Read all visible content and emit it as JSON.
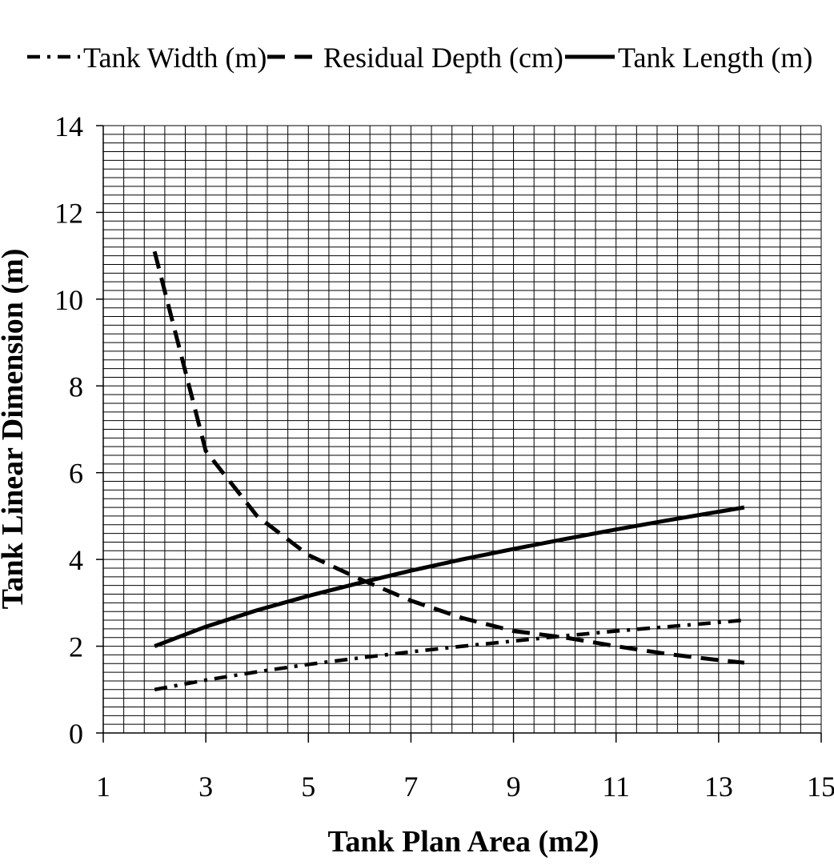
{
  "chart_data": {
    "type": "line",
    "xlabel": "Tank Plan Area (m2)",
    "ylabel": "Tank Linear Dimension (m)",
    "xlim": [
      1,
      15
    ],
    "ylim": [
      0,
      14
    ],
    "xticks": [
      "1",
      "3",
      "5",
      "7",
      "9",
      "11",
      "13",
      "15"
    ],
    "yticks": [
      "0",
      "2",
      "4",
      "6",
      "8",
      "10",
      "12",
      "14"
    ],
    "grid": true,
    "legend_position": "top",
    "series": [
      {
        "name": "Tank Width (m)",
        "style": "dash-dot",
        "x": [
          2,
          3,
          4,
          5,
          6,
          7,
          8,
          9,
          10,
          11,
          12,
          13,
          13.5
        ],
        "y": [
          1.0,
          1.22,
          1.41,
          1.58,
          1.73,
          1.87,
          2.0,
          2.12,
          2.24,
          2.35,
          2.45,
          2.55,
          2.6
        ]
      },
      {
        "name": "Residual Depth (cm)",
        "style": "dashed",
        "x": [
          2,
          3,
          4,
          5,
          6,
          7,
          8,
          9,
          10,
          11,
          12,
          13,
          13.5
        ],
        "y": [
          11.1,
          6.5,
          5.0,
          4.1,
          3.55,
          3.05,
          2.65,
          2.35,
          2.2,
          2.0,
          1.82,
          1.68,
          1.62
        ]
      },
      {
        "name": "Tank Length (m)",
        "style": "solid",
        "x": [
          2,
          3,
          4,
          5,
          6,
          7,
          8,
          9,
          10,
          11,
          12,
          13,
          13.5
        ],
        "y": [
          2.0,
          2.45,
          2.83,
          3.16,
          3.46,
          3.74,
          4.0,
          4.24,
          4.47,
          4.69,
          4.9,
          5.1,
          5.2
        ]
      }
    ]
  }
}
